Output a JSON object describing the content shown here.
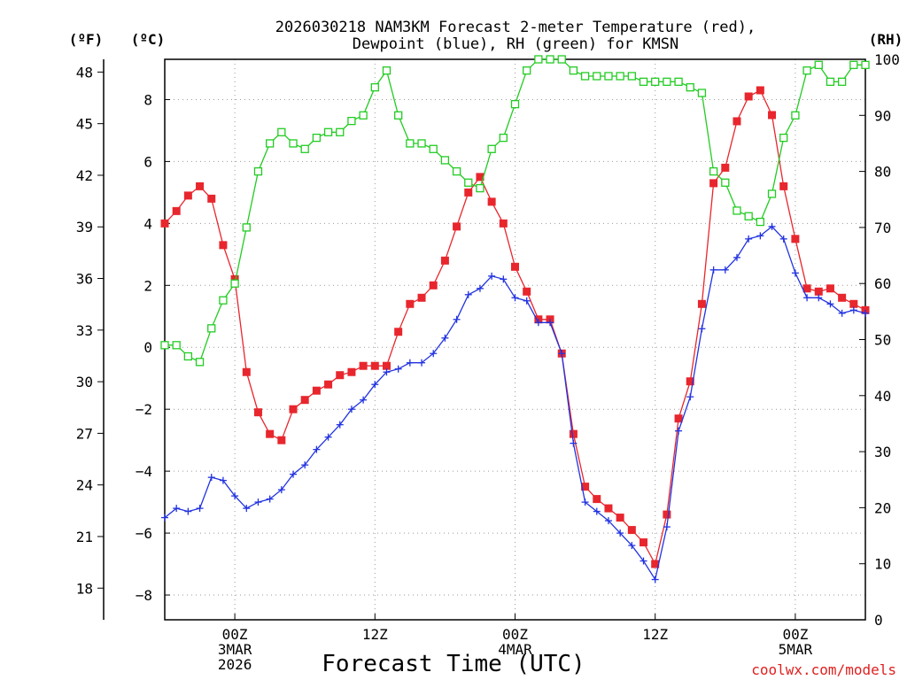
{
  "chart_data": {
    "type": "line",
    "title_lines": [
      "2026030218 NAM3KM Forecast 2-meter Temperature (red),",
      "Dewpoint (blue), RH (green) for KMSN"
    ],
    "xlabel": "Forecast Time (UTC)",
    "credit": "coolwx.com/models",
    "units": {
      "fahrenheit": "(ºF)",
      "celsius": "(ºC)",
      "rh": "(RH)"
    },
    "xlim_hours": [
      -6,
      54
    ],
    "x_ticks": [
      {
        "hour": 0,
        "lines": [
          "00Z",
          "3MAR",
          "2026"
        ]
      },
      {
        "hour": 12,
        "lines": [
          "12Z"
        ]
      },
      {
        "hour": 24,
        "lines": [
          "00Z",
          "4MAR"
        ]
      },
      {
        "hour": 36,
        "lines": [
          "12Z"
        ]
      },
      {
        "hour": 48,
        "lines": [
          "00Z",
          "5MAR"
        ]
      }
    ],
    "celsius_axis": {
      "range": [
        -8.8,
        9.3
      ],
      "ticks": [
        -8,
        -6,
        -4,
        -2,
        0,
        2,
        4,
        6,
        8
      ]
    },
    "fahrenheit_axis": {
      "ticks": [
        18,
        21,
        24,
        27,
        30,
        33,
        36,
        39,
        42,
        45,
        48
      ]
    },
    "rh_axis": {
      "range": [
        0,
        100
      ],
      "ticks": [
        0,
        10,
        20,
        30,
        40,
        50,
        60,
        70,
        80,
        90,
        100
      ]
    },
    "series": [
      {
        "name": "Temperature",
        "unit": "C",
        "color": "#e8262d",
        "marker": "filled-square",
        "x": [
          -6,
          -5,
          -4,
          -3,
          -2,
          -1,
          0,
          1,
          2,
          3,
          4,
          5,
          6,
          7,
          8,
          9,
          10,
          11,
          12,
          13,
          14,
          15,
          16,
          17,
          18,
          19,
          20,
          21,
          22,
          23,
          24,
          25,
          26,
          27,
          28,
          29,
          30,
          31,
          32,
          33,
          34,
          35,
          36,
          37,
          38,
          39,
          40,
          41,
          42,
          43,
          44,
          45,
          46,
          47,
          48,
          49,
          50,
          51,
          52,
          53,
          54
        ],
        "values": [
          4.0,
          4.4,
          4.9,
          5.2,
          4.8,
          3.3,
          2.2,
          -0.8,
          -2.1,
          -2.8,
          -3.0,
          -2.0,
          -1.7,
          -1.4,
          -1.2,
          -0.9,
          -0.8,
          -0.6,
          -0.6,
          -0.6,
          0.5,
          1.4,
          1.6,
          2.0,
          2.8,
          3.9,
          5.0,
          5.5,
          4.7,
          4.0,
          2.6,
          1.8,
          0.9,
          0.9,
          -0.2,
          -2.8,
          -4.5,
          -4.9,
          -5.2,
          -5.5,
          -5.9,
          -6.3,
          -7.0,
          -5.4,
          -2.3,
          -1.1,
          1.4,
          5.3,
          5.8,
          7.3,
          8.1,
          8.3,
          7.5,
          5.2,
          3.5,
          1.9,
          1.8,
          1.9,
          1.6,
          1.4,
          1.2
        ]
      },
      {
        "name": "Dewpoint",
        "unit": "C",
        "color": "#2233e0",
        "marker": "plus",
        "x": [
          -6,
          -5,
          -4,
          -3,
          -2,
          -1,
          0,
          1,
          2,
          3,
          4,
          5,
          6,
          7,
          8,
          9,
          10,
          11,
          12,
          13,
          14,
          15,
          16,
          17,
          18,
          19,
          20,
          21,
          22,
          23,
          24,
          25,
          26,
          27,
          28,
          29,
          30,
          31,
          32,
          33,
          34,
          35,
          36,
          37,
          38,
          39,
          40,
          41,
          42,
          43,
          44,
          45,
          46,
          47,
          48,
          49,
          50,
          51,
          52,
          53,
          54
        ],
        "values": [
          -5.5,
          -5.2,
          -5.3,
          -5.2,
          -4.2,
          -4.3,
          -4.8,
          -5.2,
          -5.0,
          -4.9,
          -4.6,
          -4.1,
          -3.8,
          -3.3,
          -2.9,
          -2.5,
          -2.0,
          -1.7,
          -1.2,
          -0.8,
          -0.7,
          -0.5,
          -0.5,
          -0.2,
          0.3,
          0.9,
          1.7,
          1.9,
          2.3,
          2.2,
          1.6,
          1.5,
          0.8,
          0.8,
          -0.2,
          -3.1,
          -5.0,
          -5.3,
          -5.6,
          -6.0,
          -6.4,
          -6.9,
          -7.5,
          -5.8,
          -2.7,
          -1.6,
          0.6,
          2.5,
          2.5,
          2.9,
          3.5,
          3.6,
          3.9,
          3.5,
          2.4,
          1.6,
          1.6,
          1.4,
          1.1,
          1.2,
          1.1
        ]
      },
      {
        "name": "RH",
        "unit": "%",
        "color": "#22cc22",
        "marker": "open-square",
        "x": [
          -6,
          -5,
          -4,
          -3,
          -2,
          -1,
          0,
          1,
          2,
          3,
          4,
          5,
          6,
          7,
          8,
          9,
          10,
          11,
          12,
          13,
          14,
          15,
          16,
          17,
          18,
          19,
          20,
          21,
          22,
          23,
          24,
          25,
          26,
          27,
          28,
          29,
          30,
          31,
          32,
          33,
          34,
          35,
          36,
          37,
          38,
          39,
          40,
          41,
          42,
          43,
          44,
          45,
          46,
          47,
          48,
          49,
          50,
          51,
          52,
          53,
          54
        ],
        "values": [
          49,
          49,
          47,
          46,
          52,
          57,
          60,
          70,
          80,
          85,
          87,
          85,
          84,
          86,
          87,
          87,
          89,
          90,
          95,
          98,
          90,
          85,
          85,
          84,
          82,
          80,
          78,
          77,
          84,
          86,
          92,
          98,
          100,
          100,
          100,
          98,
          97,
          97,
          97,
          97,
          97,
          96,
          96,
          96,
          96,
          95,
          94,
          80,
          78,
          73,
          72,
          71,
          76,
          86,
          90,
          98,
          99,
          96,
          96,
          99,
          99
        ]
      }
    ]
  }
}
